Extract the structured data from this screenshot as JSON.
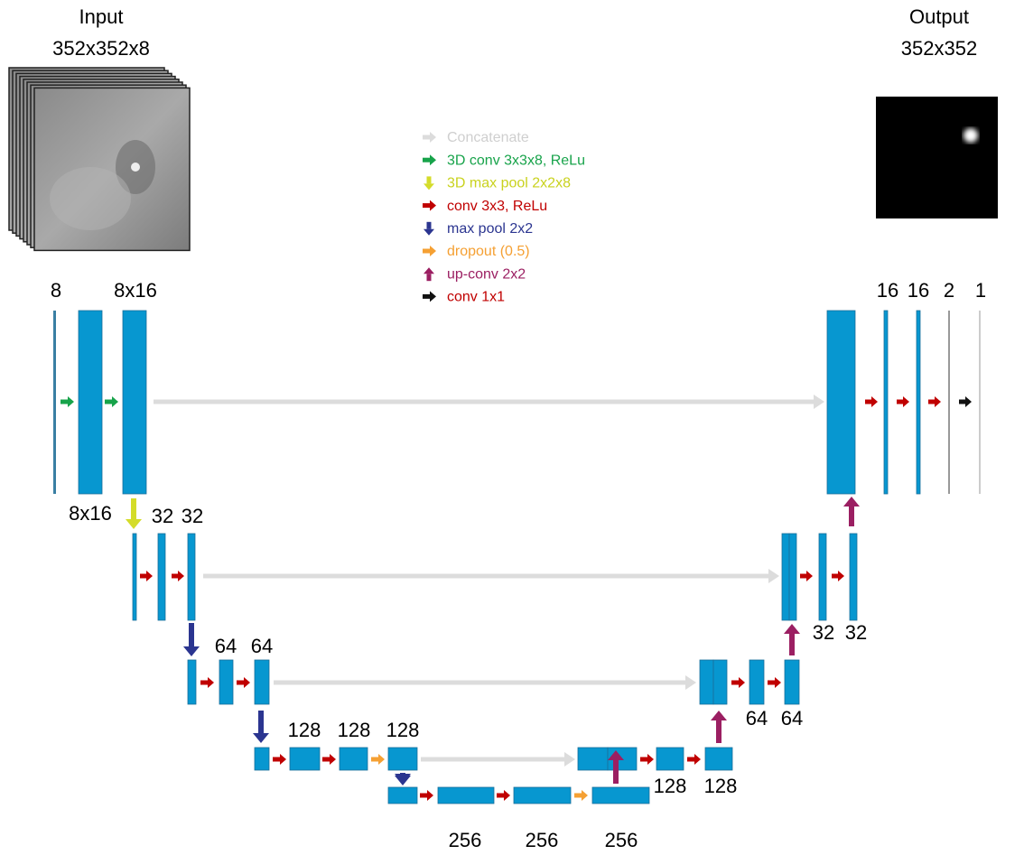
{
  "input": {
    "title": "Input",
    "size": "352x352x8"
  },
  "output": {
    "title": "Output",
    "size": "352x352"
  },
  "legend": [
    "Concatenate",
    "3D conv 3x3x8, ReLu",
    "3D max pool 2x2x8",
    "conv 3x3, ReLu",
    "max pool 2x2",
    "dropout (0.5)",
    "up-conv 2x2",
    "conv 1x1"
  ],
  "labels": [
    "8",
    "8x16",
    "8x16",
    "32",
    "32",
    "64",
    "64",
    "128",
    "128",
    "128",
    "256",
    "256",
    "256",
    "128",
    "128",
    "64",
    "64",
    "32",
    "32",
    "16",
    "16",
    "2",
    "1"
  ]
}
